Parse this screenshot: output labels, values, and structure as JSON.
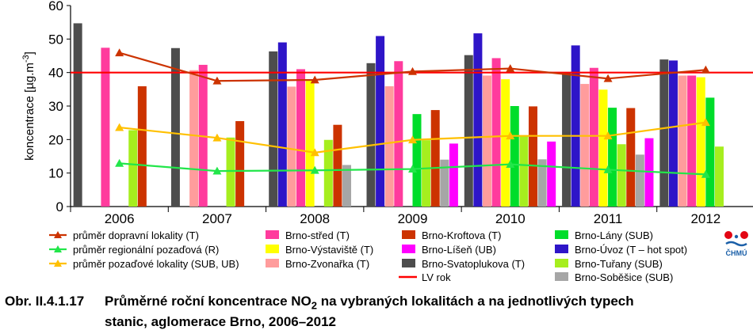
{
  "caption": {
    "number": "Obr. II.4.1.17",
    "line1_pre": "Průměrné roční koncentrace NO",
    "line1_sub": "2",
    "line1_post": " na vybraných lokalitách a na jednotlivých typech",
    "line2": "stanic, aglomerace Brno, 2006–2012"
  },
  "logo": {
    "text": "ČHMÚ"
  },
  "chart_data": {
    "type": "bar",
    "ylabel_main": "koncentrace [µg.m",
    "ylabel_sup": "-3",
    "ylabel_end": "]",
    "ylim": [
      0,
      60
    ],
    "yticks": [
      "0",
      "10",
      "20",
      "30",
      "40",
      "50",
      "60"
    ],
    "categories": [
      "2006",
      "2007",
      "2008",
      "2009",
      "2010",
      "2011",
      "2012"
    ],
    "grid": false,
    "legend_placement": "bottom",
    "limit_line": {
      "name": "LV rok",
      "value": 40,
      "color": "#ff0000"
    },
    "series": [
      {
        "name": "Brno-Svatoplukova (T)",
        "color": "#4d4d4d",
        "values": [
          54.7,
          47.3,
          46.3,
          42.8,
          45.2,
          40.0,
          43.9
        ]
      },
      {
        "name": "Brno-Úvoz (T – hot spot)",
        "color": "#2e15c8",
        "values": [
          null,
          null,
          49.0,
          50.9,
          51.7,
          48.1,
          43.6
        ]
      },
      {
        "name": "Brno-Zvonařka  (T)",
        "color": "#ff9c9c",
        "values": [
          null,
          40.7,
          35.8,
          35.9,
          39.1,
          36.6,
          39.1
        ]
      },
      {
        "name": "Brno-střed (T)",
        "color": "#ff3b9d",
        "values": [
          47.4,
          42.3,
          41.0,
          43.4,
          44.3,
          41.4,
          39.1
        ]
      },
      {
        "name": "Brno-Výstaviště  (T)",
        "color": "#ffff00",
        "values": [
          null,
          null,
          37.7,
          null,
          38.0,
          34.9,
          38.6
        ]
      },
      {
        "name": "Brno-Lány (SUB)",
        "color": "#00dd2a",
        "values": [
          null,
          null,
          null,
          27.6,
          30.0,
          29.5,
          32.5
        ]
      },
      {
        "name": "Brno-Tuřany (SUB)",
        "color": "#a6ee1e",
        "values": [
          22.8,
          20.6,
          19.9,
          19.8,
          21.1,
          18.6,
          17.9
        ]
      },
      {
        "name": "Brno-Kroftova (T)",
        "color": "#cc3300",
        "values": [
          35.9,
          25.5,
          24.4,
          28.8,
          29.9,
          29.4,
          null
        ]
      },
      {
        "name": "Brno-Soběšice (SUB)",
        "color": "#a6a6a6",
        "values": [
          null,
          null,
          12.4,
          14.0,
          14.1,
          15.5,
          null
        ]
      },
      {
        "name": "Brno-Líšeň (UB)",
        "color": "#ff00ff",
        "values": [
          null,
          null,
          null,
          18.8,
          19.4,
          20.4,
          null
        ]
      }
    ],
    "averages": [
      {
        "name": "průměr dopravní lokality (T)",
        "color": "#cc3300",
        "values": [
          45.9,
          37.5,
          37.8,
          40.3,
          41.2,
          38.2,
          40.8
        ]
      },
      {
        "name": "průměr regionální pozaďová (R)",
        "color": "#22e64a",
        "values": [
          12.9,
          10.6,
          10.8,
          11.2,
          12.6,
          11.0,
          9.6
        ]
      },
      {
        "name": "průměr pozaďové lokality (SUB, UB)",
        "color": "#ffc000",
        "values": [
          23.6,
          20.5,
          16.1,
          19.9,
          21.1,
          21.1,
          25.1
        ]
      }
    ],
    "legend_order": [
      "průměr dopravní lokality (T)",
      "průměr regionální pozaďová (R)",
      "průměr pozaďové lokality (SUB, UB)",
      "Brno-střed (T)",
      "Brno-Výstaviště  (T)",
      "Brno-Zvonařka  (T)",
      "Brno-Kroftova (T)",
      "Brno-Líšeň (UB)",
      "Brno-Svatoplukova (T)",
      "LV rok",
      "Brno-Lány (SUB)",
      "Brno-Úvoz (T – hot spot)",
      "Brno-Tuřany (SUB)",
      "Brno-Soběšice (SUB)"
    ]
  }
}
